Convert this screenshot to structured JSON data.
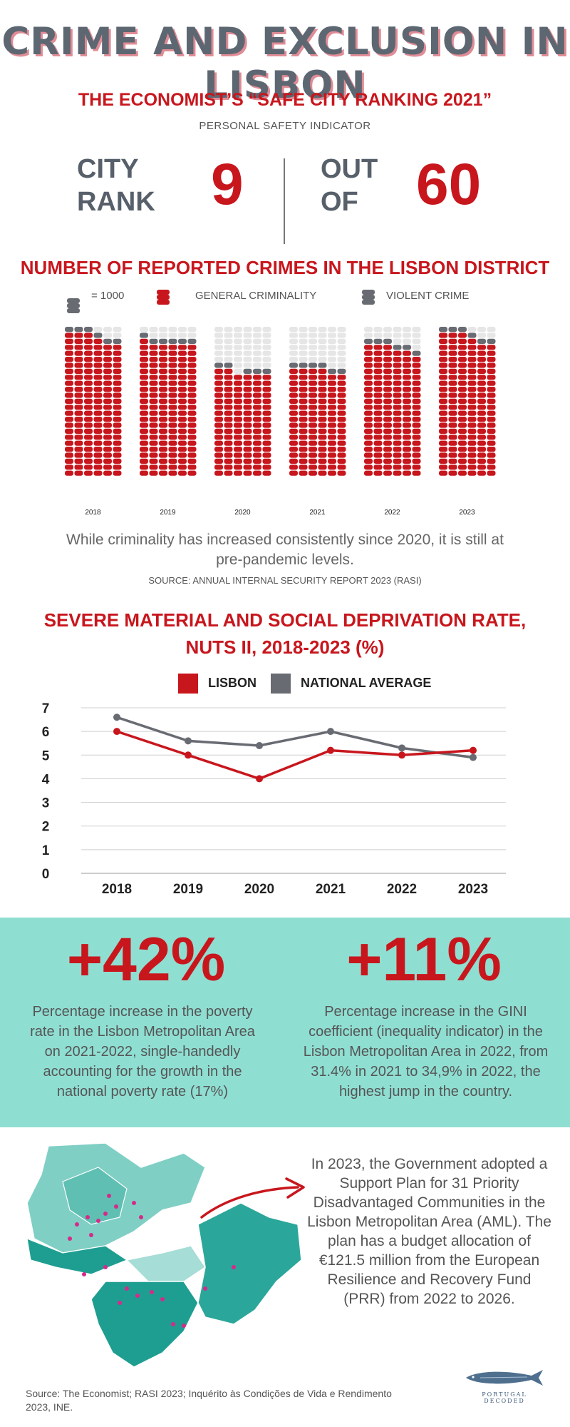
{
  "title": "CRIME AND EXCLUSION IN LISBON",
  "ranking": {
    "title": "THE ECONOMIST’S “SAFE CITY RANKING 2021”",
    "subtitle": "PERSONAL SAFETY INDICATOR",
    "city_rank_label_1": "CITY",
    "city_rank_label_2": "RANK",
    "city_rank_value": "9",
    "out_of_label_1": "OUT",
    "out_of_label_2": "OF",
    "out_of_value": "60"
  },
  "colors": {
    "red": "#c8161d",
    "grey": "#686b72",
    "teal": "#8fded2",
    "empty": "#e6e6e6"
  },
  "chart_data": [
    {
      "type": "bar",
      "title": "NUMBER OF REPORTED CRIMES IN THE LISBON DISTRICT",
      "legend": {
        "unit_label": "= 1000",
        "general_label": "GENERAL CRIMINALITY",
        "violent_label": "VIOLENT CRIME"
      },
      "categories": [
        "2018",
        "2019",
        "2020",
        "2021",
        "2022",
        "2023"
      ],
      "capacity_per_column": 25,
      "columns_per_year": 6,
      "series": [
        {
          "name": "General criminality",
          "columns": [
            [
              24,
              24,
              24,
              23,
              22,
              22
            ],
            [
              23,
              22,
              22,
              22,
              22,
              22
            ],
            [
              18,
              18,
              17,
              17,
              17,
              17
            ],
            [
              18,
              18,
              18,
              18,
              17,
              17
            ],
            [
              22,
              22,
              22,
              21,
              21,
              20
            ],
            [
              24,
              24,
              24,
              23,
              22,
              22
            ]
          ]
        },
        {
          "name": "Violent crime",
          "columns": [
            [
              1,
              1,
              1,
              1,
              1,
              1
            ],
            [
              1,
              1,
              1,
              1,
              1,
              1
            ],
            [
              1,
              1,
              0,
              1,
              1,
              1
            ],
            [
              1,
              1,
              1,
              1,
              1,
              1
            ],
            [
              1,
              1,
              1,
              1,
              1,
              1
            ],
            [
              1,
              1,
              1,
              1,
              1,
              1
            ]
          ]
        }
      ],
      "note": "While criminality has increased consistently since 2020, it is still at pre-pandemic levels.",
      "source": "SOURCE: ANNUAL INTERNAL SECURITY REPORT 2023 (RASI)"
    },
    {
      "type": "line",
      "title_line_1": "SEVERE MATERIAL AND SOCIAL DEPRIVATION RATE,",
      "title_line_2": "NUTS II, 2018-2023 (%)",
      "x": [
        "2018",
        "2019",
        "2020",
        "2021",
        "2022",
        "2023"
      ],
      "series": [
        {
          "name": "LISBON",
          "values": [
            6.0,
            5.0,
            4.0,
            5.2,
            5.0,
            5.2
          ]
        },
        {
          "name": "NATIONAL AVERAGE",
          "values": [
            6.6,
            5.6,
            5.4,
            6.0,
            5.3,
            4.9
          ]
        }
      ],
      "ylim": [
        0,
        7
      ],
      "yticks": [
        "0",
        "1",
        "2",
        "3",
        "4",
        "5",
        "6",
        "7"
      ],
      "grid": true
    }
  ],
  "stats": {
    "left_value": "+42%",
    "left_desc": "Percentage increase in the poverty rate in the Lisbon Metropolitan Area on 2021-2022, single-handedly accounting for the growth in the national poverty rate (17%)",
    "right_value": "+11%",
    "right_desc": "Percentage increase in the GINI coefficient (inequality indicator) in the Lisbon Metropolitan Area in 2022, from 31.4% in 2021 to 34,9% in 2022, the highest jump in the country."
  },
  "plan": {
    "text": "In 2023, the Government adopted a Support Plan for 31 Priority Disadvantaged Communities in the Lisbon Metropolitan Area (AML). The plan has a budget allocation of €121.5 million from the European Resilience and Recovery Fund (PRR) from 2022 to 2026."
  },
  "footer": {
    "source": "Source: The Economist; RASI 2023; Inquérito às Condições de Vida e Rendimento 2023, INE.",
    "logo_text": "PORTUGAL DECODED"
  }
}
